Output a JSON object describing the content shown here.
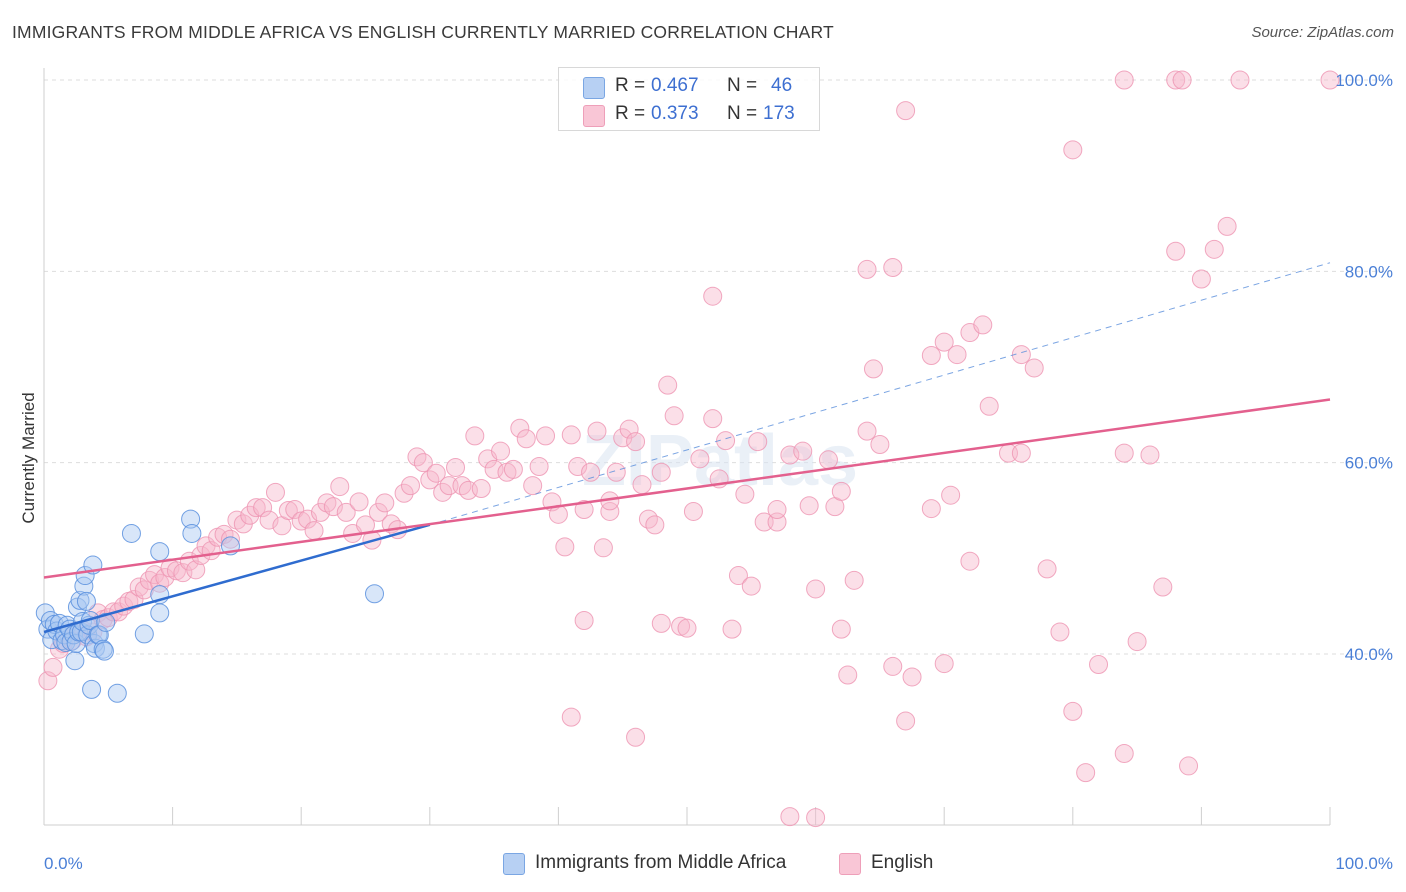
{
  "title": "IMMIGRANTS FROM MIDDLE AFRICA VS ENGLISH CURRENTLY MARRIED CORRELATION CHART",
  "source": "Source: ZipAtlas.com",
  "watermark": "ZIPatlas",
  "legend": {
    "r_label": "R =",
    "n_label": "N =",
    "rows": [
      {
        "name": "Immigrants from Middle Africa",
        "r": "0.467",
        "n": "46",
        "fill": "#a9c8f2",
        "stroke": "#6d9ee0"
      },
      {
        "name": "English",
        "r": "0.373",
        "n": "173",
        "fill": "#f7b8cc",
        "stroke": "#ea8cab"
      }
    ]
  },
  "colors": {
    "blue": "#4a86dd",
    "blue_line": "#2f6ccf",
    "pink": "#f28fb0",
    "pink_line": "#e3608e",
    "tick_text": "#4a7fd6",
    "grid": "#dddddd"
  },
  "chart_data": {
    "type": "scatter",
    "title": "IMMIGRANTS FROM MIDDLE AFRICA VS ENGLISH CURRENTLY MARRIED CORRELATION CHART",
    "xlabel": "",
    "ylabel": "Currently Married",
    "xlim": [
      0,
      100
    ],
    "ylim": [
      19,
      100
    ],
    "x_tick_labels": [
      "0.0%",
      "100.0%"
    ],
    "y_ticks": [
      40,
      60,
      80,
      100
    ],
    "y_tick_labels": [
      "40.0%",
      "60.0%",
      "80.0%",
      "100.0%"
    ],
    "grid": true,
    "legend_position": "top-center",
    "series": [
      {
        "name": "Immigrants from Middle Africa",
        "color": "#4a86dd",
        "points": [
          [
            0.1,
            44.3
          ],
          [
            0.3,
            42.6
          ],
          [
            0.5,
            43.5
          ],
          [
            0.6,
            41.5
          ],
          [
            0.8,
            43.1
          ],
          [
            1.0,
            42.4
          ],
          [
            1.2,
            43.2
          ],
          [
            1.4,
            41.4
          ],
          [
            1.6,
            42.0
          ],
          [
            1.7,
            41.2
          ],
          [
            1.8,
            43.0
          ],
          [
            2.0,
            42.6
          ],
          [
            2.1,
            41.3
          ],
          [
            2.3,
            42.0
          ],
          [
            2.4,
            39.3
          ],
          [
            2.5,
            41.1
          ],
          [
            2.6,
            44.9
          ],
          [
            2.7,
            42.3
          ],
          [
            2.8,
            45.6
          ],
          [
            2.9,
            42.3
          ],
          [
            3.0,
            43.4
          ],
          [
            3.1,
            47.1
          ],
          [
            3.2,
            48.2
          ],
          [
            3.3,
            45.5
          ],
          [
            3.4,
            42.0
          ],
          [
            3.5,
            43.0
          ],
          [
            3.6,
            43.5
          ],
          [
            3.7,
            36.3
          ],
          [
            3.8,
            49.3
          ],
          [
            3.9,
            41.1
          ],
          [
            4.0,
            40.6
          ],
          [
            4.2,
            42.0
          ],
          [
            4.3,
            42.0
          ],
          [
            4.6,
            40.5
          ],
          [
            4.7,
            40.3
          ],
          [
            4.8,
            43.3
          ],
          [
            5.7,
            35.9
          ],
          [
            6.8,
            52.6
          ],
          [
            7.8,
            42.1
          ],
          [
            9.0,
            50.7
          ],
          [
            9.0,
            44.3
          ],
          [
            9.0,
            46.2
          ],
          [
            11.4,
            54.1
          ],
          [
            11.5,
            52.6
          ],
          [
            14.5,
            51.3
          ],
          [
            25.7,
            46.3
          ]
        ]
      },
      {
        "name": "English",
        "color": "#f28fb0",
        "points": [
          [
            0.3,
            37.2
          ],
          [
            0.7,
            38.6
          ],
          [
            1.2,
            40.5
          ],
          [
            1.5,
            41.1
          ],
          [
            2.2,
            41.4
          ],
          [
            2.5,
            42.4
          ],
          [
            3.0,
            42.5
          ],
          [
            3.3,
            41.8
          ],
          [
            3.8,
            42.3
          ],
          [
            4.2,
            44.3
          ],
          [
            4.6,
            43.6
          ],
          [
            5.0,
            43.8
          ],
          [
            5.4,
            44.4
          ],
          [
            5.8,
            44.4
          ],
          [
            6.2,
            45.0
          ],
          [
            6.6,
            45.5
          ],
          [
            7.0,
            45.7
          ],
          [
            7.4,
            47.0
          ],
          [
            7.8,
            46.7
          ],
          [
            8.2,
            47.7
          ],
          [
            8.6,
            48.3
          ],
          [
            9.0,
            47.4
          ],
          [
            9.4,
            48.0
          ],
          [
            9.8,
            49.0
          ],
          [
            10.3,
            48.7
          ],
          [
            10.8,
            48.5
          ],
          [
            11.3,
            49.7
          ],
          [
            11.8,
            48.8
          ],
          [
            12.2,
            50.3
          ],
          [
            12.6,
            51.3
          ],
          [
            13.0,
            50.8
          ],
          [
            13.5,
            52.2
          ],
          [
            14.0,
            52.5
          ],
          [
            14.5,
            52.0
          ],
          [
            15.0,
            54.0
          ],
          [
            15.5,
            53.6
          ],
          [
            16.0,
            54.5
          ],
          [
            16.5,
            55.3
          ],
          [
            17.0,
            55.3
          ],
          [
            17.5,
            54.0
          ],
          [
            18.0,
            56.9
          ],
          [
            18.5,
            53.4
          ],
          [
            19.0,
            55.0
          ],
          [
            19.5,
            55.1
          ],
          [
            20.0,
            53.9
          ],
          [
            20.5,
            54.1
          ],
          [
            21.0,
            52.9
          ],
          [
            21.5,
            54.8
          ],
          [
            22.0,
            55.8
          ],
          [
            22.5,
            55.4
          ],
          [
            23.0,
            57.5
          ],
          [
            23.5,
            54.8
          ],
          [
            24.0,
            52.6
          ],
          [
            24.5,
            55.9
          ],
          [
            25.0,
            53.5
          ],
          [
            25.5,
            51.9
          ],
          [
            26.0,
            54.8
          ],
          [
            26.5,
            55.8
          ],
          [
            27.0,
            53.6
          ],
          [
            27.5,
            53.0
          ],
          [
            28.0,
            56.8
          ],
          [
            28.5,
            57.6
          ],
          [
            29.0,
            60.6
          ],
          [
            29.5,
            60.0
          ],
          [
            30.0,
            58.2
          ],
          [
            30.5,
            58.9
          ],
          [
            31.0,
            56.9
          ],
          [
            31.5,
            57.6
          ],
          [
            32.0,
            59.5
          ],
          [
            32.5,
            57.6
          ],
          [
            33.0,
            57.1
          ],
          [
            33.5,
            62.8
          ],
          [
            34.0,
            57.3
          ],
          [
            34.5,
            60.4
          ],
          [
            35.0,
            59.3
          ],
          [
            35.5,
            61.2
          ],
          [
            36.0,
            59.0
          ],
          [
            36.5,
            59.3
          ],
          [
            37.0,
            63.6
          ],
          [
            37.5,
            62.5
          ],
          [
            38.0,
            57.6
          ],
          [
            38.5,
            59.6
          ],
          [
            39.0,
            62.8
          ],
          [
            39.5,
            55.9
          ],
          [
            40.0,
            54.6
          ],
          [
            40.5,
            51.2
          ],
          [
            41.0,
            62.9
          ],
          [
            41.5,
            59.6
          ],
          [
            42.0,
            55.1
          ],
          [
            42.5,
            59.0
          ],
          [
            43.0,
            63.3
          ],
          [
            43.5,
            51.1
          ],
          [
            44.0,
            54.9
          ],
          [
            44.5,
            59.0
          ],
          [
            45.0,
            62.6
          ],
          [
            45.5,
            63.5
          ],
          [
            46.0,
            62.2
          ],
          [
            46.5,
            57.7
          ],
          [
            47.0,
            54.1
          ],
          [
            47.5,
            53.5
          ],
          [
            48.0,
            59.0
          ],
          [
            48.5,
            68.1
          ],
          [
            49.0,
            64.9
          ],
          [
            49.5,
            42.9
          ],
          [
            50.0,
            42.7
          ],
          [
            50.5,
            54.9
          ],
          [
            51.0,
            60.4
          ],
          [
            52.0,
            64.6
          ],
          [
            52.5,
            58.3
          ],
          [
            53.0,
            62.3
          ],
          [
            53.5,
            42.6
          ],
          [
            54.0,
            48.2
          ],
          [
            54.5,
            56.7
          ],
          [
            55.0,
            47.1
          ],
          [
            55.5,
            62.2
          ],
          [
            56.0,
            53.8
          ],
          [
            57.0,
            53.8
          ],
          [
            58.0,
            60.8
          ],
          [
            59.0,
            61.2
          ],
          [
            59.5,
            55.5
          ],
          [
            60.0,
            46.8
          ],
          [
            61.0,
            60.3
          ],
          [
            61.5,
            55.4
          ],
          [
            62.0,
            57.0
          ],
          [
            63.0,
            47.7
          ],
          [
            64.0,
            63.3
          ],
          [
            64.5,
            69.8
          ],
          [
            65.0,
            61.9
          ],
          [
            66.0,
            38.7
          ],
          [
            67.0,
            33.0
          ],
          [
            67.5,
            37.6
          ],
          [
            69.0,
            55.2
          ],
          [
            70.0,
            39.0
          ],
          [
            70.5,
            56.6
          ],
          [
            72.0,
            49.7
          ],
          [
            73.5,
            65.9
          ],
          [
            75.0,
            61.0
          ],
          [
            76.0,
            61.0
          ],
          [
            78.0,
            48.9
          ],
          [
            79.0,
            42.3
          ],
          [
            80.0,
            34.0
          ],
          [
            81.0,
            27.6
          ],
          [
            82.0,
            38.9
          ],
          [
            84.0,
            29.6
          ],
          [
            85.0,
            41.3
          ],
          [
            86.0,
            60.8
          ],
          [
            87.0,
            47.0
          ],
          [
            88.0,
            82.1
          ],
          [
            89.0,
            28.3
          ],
          [
            90.0,
            79.2
          ],
          [
            91.0,
            82.3
          ],
          [
            92.0,
            84.7
          ],
          [
            62.0,
            42.6
          ],
          [
            62.5,
            37.8
          ],
          [
            67.0,
            96.8
          ],
          [
            69.0,
            71.2
          ],
          [
            70.0,
            72.6
          ],
          [
            71.0,
            71.3
          ],
          [
            72.0,
            73.6
          ],
          [
            73.0,
            74.4
          ],
          [
            66.0,
            80.4
          ],
          [
            64.0,
            80.2
          ],
          [
            84.0,
            100.0
          ],
          [
            88.0,
            100.0
          ],
          [
            93.0,
            100.0
          ],
          [
            100.0,
            100.0
          ],
          [
            88.5,
            100.0
          ],
          [
            80.0,
            92.7
          ],
          [
            77.0,
            69.9
          ],
          [
            84.0,
            61.0
          ],
          [
            76.0,
            71.3
          ],
          [
            57.0,
            55.1
          ],
          [
            52.0,
            77.4
          ],
          [
            44.0,
            56.0
          ],
          [
            42.0,
            43.5
          ],
          [
            48.0,
            43.2
          ],
          [
            41.0,
            33.4
          ],
          [
            46.0,
            31.3
          ],
          [
            58.0,
            23.0
          ],
          [
            60.0,
            22.9
          ]
        ]
      }
    ],
    "trend_lines": [
      {
        "series": "Immigrants from Middle Africa",
        "x": [
          0,
          30
        ],
        "y": [
          42.3,
          53.5
        ],
        "extended_to": [
          100,
          80.9
        ]
      },
      {
        "series": "English",
        "x": [
          0,
          100
        ],
        "y": [
          48.0,
          66.6
        ]
      }
    ]
  }
}
